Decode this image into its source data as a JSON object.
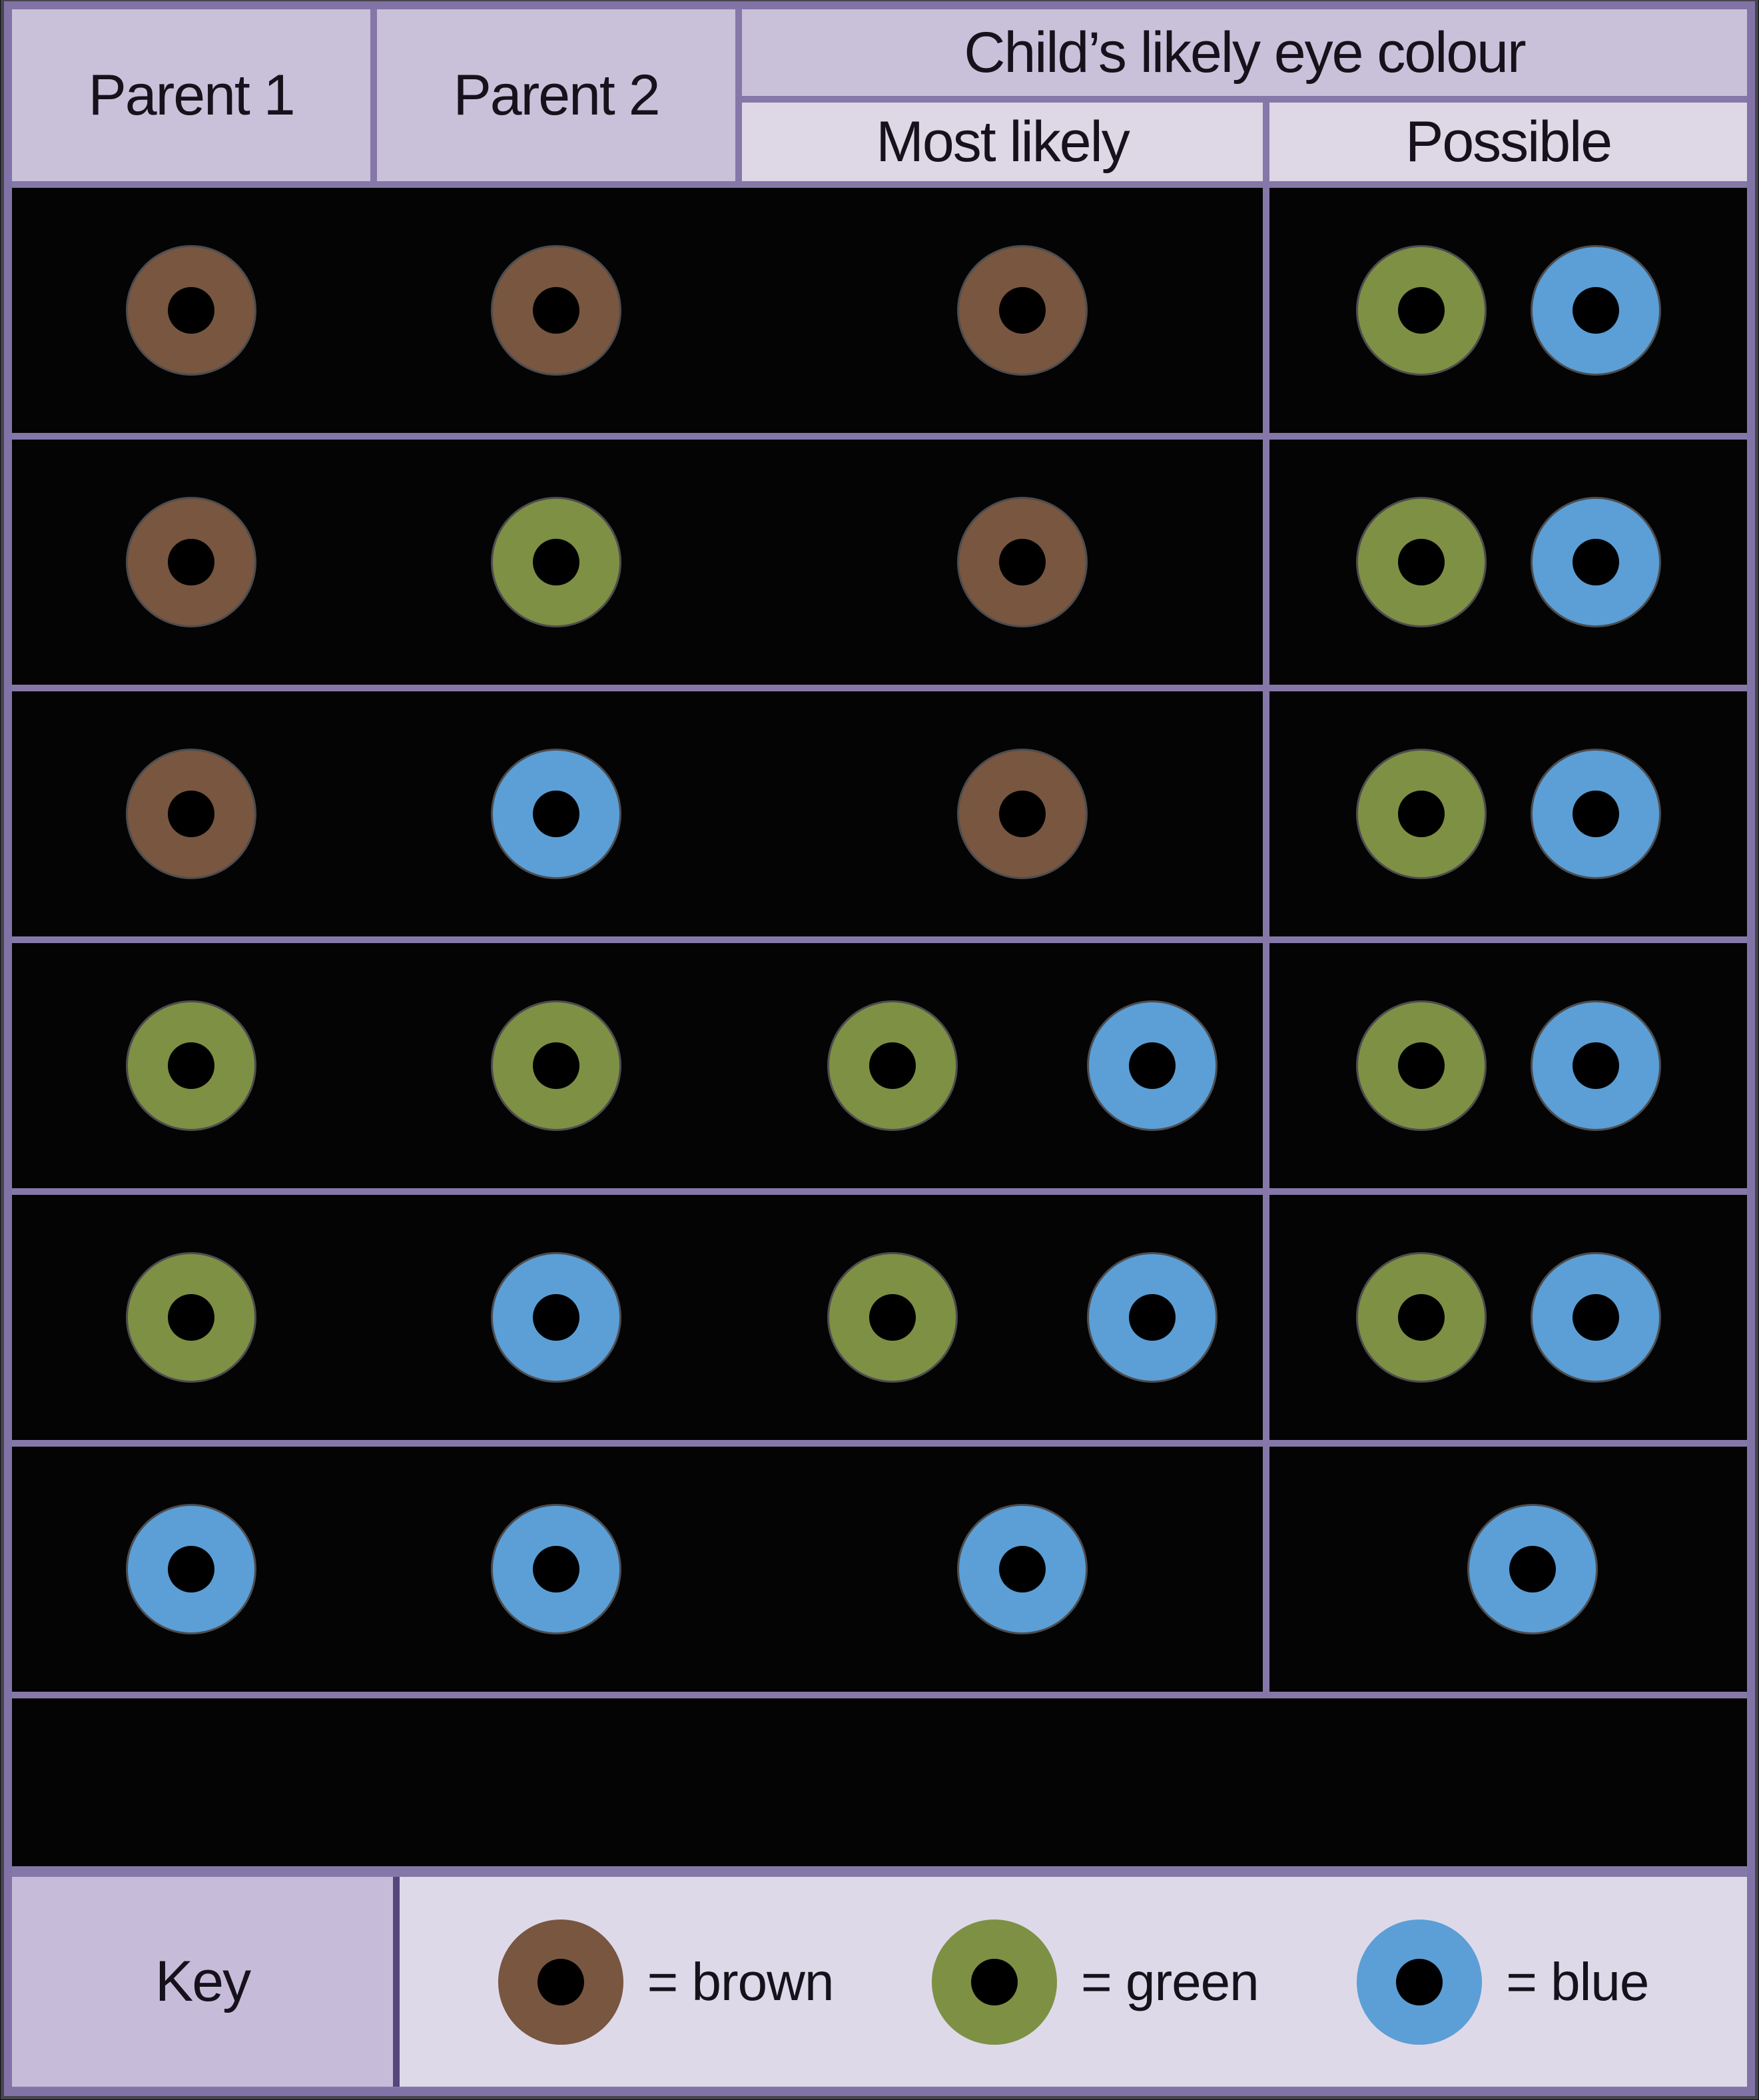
{
  "table": {
    "headers": {
      "parent1": "Parent 1",
      "parent2": "Parent 2",
      "child": "Child’s likely eye colour",
      "most_likely": "Most likely",
      "possible": "Possible"
    },
    "rows": [
      {
        "parent1": "brown",
        "parent2": "brown",
        "most_likely": [
          "brown"
        ],
        "possible": [
          "green",
          "blue"
        ]
      },
      {
        "parent1": "brown",
        "parent2": "green",
        "most_likely": [
          "brown"
        ],
        "possible": [
          "green",
          "blue"
        ]
      },
      {
        "parent1": "brown",
        "parent2": "blue",
        "most_likely": [
          "brown"
        ],
        "possible": [
          "green",
          "blue"
        ]
      },
      {
        "parent1": "green",
        "parent2": "green",
        "most_likely": [
          "green",
          "blue"
        ],
        "possible": [
          "green",
          "blue"
        ]
      },
      {
        "parent1": "green",
        "parent2": "blue",
        "most_likely": [
          "green",
          "blue"
        ],
        "possible": [
          "green",
          "blue"
        ]
      },
      {
        "parent1": "blue",
        "parent2": "blue",
        "most_likely": [
          "blue"
        ],
        "possible": [
          "blue"
        ]
      }
    ]
  },
  "key": {
    "label": "Key",
    "entries": [
      {
        "color": "brown",
        "label": "= brown"
      },
      {
        "color": "green",
        "label": "= green"
      },
      {
        "color": "blue",
        "label": "= blue"
      }
    ]
  },
  "colors": {
    "brown": "#785640",
    "green": "#7e9044",
    "blue": "#5b9fd6",
    "pupil": "#000000",
    "grid_purple": "#8578a8",
    "outer_border": "#8273a7",
    "header_bg": "#c9c1da",
    "subheader_bg": "#ddd7e6",
    "key_label_bg": "#c6bcda",
    "key_content_bg": "#ded9e9",
    "key_divider": "#55477d",
    "cell_bg": "#040404",
    "text": "#16121b"
  }
}
